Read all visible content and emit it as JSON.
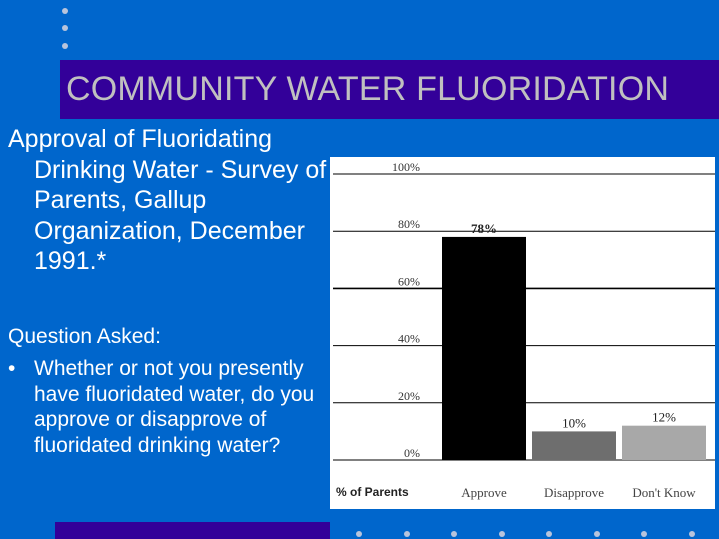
{
  "title": "COMMUNITY WATER FLUORIDATION",
  "subtitle": "Approval of Fluoridating Drinking Water - Survey of Parents, Gallup Organization, December 1991.*",
  "question_label": "Question Asked:",
  "bullet": "•",
  "question": "Whether or not you presently have fluoridated water, do you approve or disapprove of fluoridated drinking water?",
  "colors": {
    "background": "#0066cc",
    "title_bar": "#330099",
    "title_text": "#c0c0c0",
    "approve_bar": "#000000",
    "disapprove_bar": "#6e6e6e",
    "dont_know_bar": "#a8a8a8"
  },
  "chart_data": {
    "type": "bar",
    "categories": [
      "Approve",
      "Disapprove",
      "Don't Know"
    ],
    "values": [
      78,
      10,
      12
    ],
    "value_labels": [
      "78%",
      "10%",
      "12%"
    ],
    "ylim": [
      0,
      100
    ],
    "yticks": [
      0,
      20,
      40,
      60,
      80,
      100
    ],
    "ytick_labels": [
      "0%",
      "20%",
      "40%",
      "60%",
      "80%",
      "100%"
    ],
    "xlabel": "% of Parents",
    "grid": true
  }
}
